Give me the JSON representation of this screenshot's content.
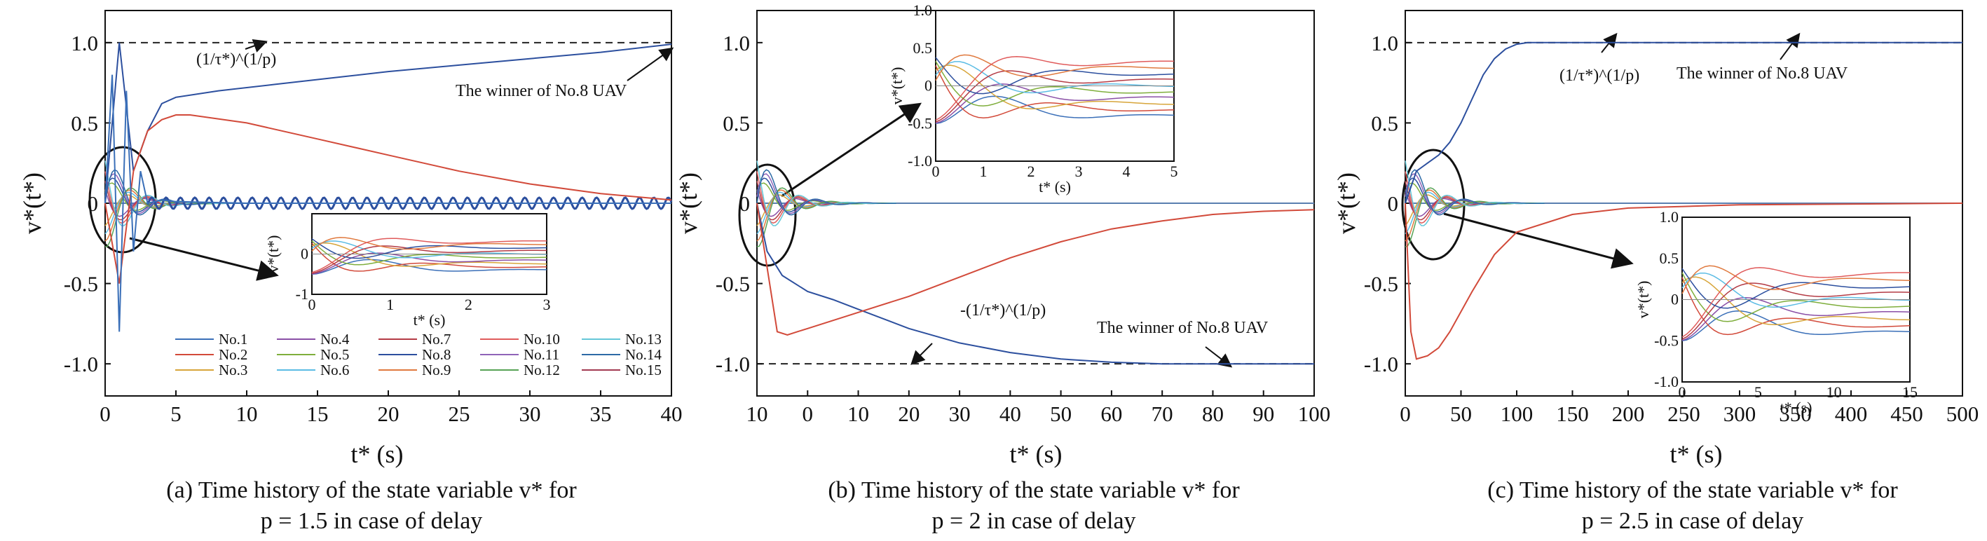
{
  "figure": {
    "legend": [
      "No.1",
      "No.2",
      "No.3",
      "No.4",
      "No.5",
      "No.6",
      "No.7",
      "No.8",
      "No.9",
      "No.10",
      "No.11",
      "No.12",
      "No.13",
      "No.14",
      "No.15"
    ],
    "series_colors": [
      "#3a6fb8",
      "#d24a3a",
      "#d7a53a",
      "#8a4fa6",
      "#7fae3c",
      "#5bbce4",
      "#b43b45",
      "#2c4f9e",
      "#e07a3f",
      "#e05b5b",
      "#8f63b8",
      "#57a356",
      "#65c7d8",
      "#2d6aa6",
      "#a23a52"
    ]
  },
  "chart_data": [
    {
      "id": "a",
      "type": "line",
      "caption_line1": "(a) Time history of the state variable v* for",
      "caption_line2": "p = 1.5 in case of delay",
      "xlabel": "t* (s)",
      "ylabel": "v*(t*)",
      "xlim": [
        0,
        40
      ],
      "ylim": [
        -1.2,
        1.2
      ],
      "xticks": [
        "0",
        "5",
        "10",
        "15",
        "20",
        "25",
        "30",
        "35",
        "40"
      ],
      "yticks": [
        "1.0",
        "0.5",
        "0",
        "-0.5",
        "-1.0"
      ],
      "reference_line": 1.0,
      "annotations": [
        "(1/τ*)^(1/p)",
        "The winner of No.8 UAV"
      ],
      "series": [
        {
          "name": "No.8",
          "x": [
            0,
            1,
            2,
            3,
            4,
            5,
            8,
            12,
            16,
            20,
            25,
            30,
            35,
            40
          ],
          "values": [
            0,
            1.0,
            0.2,
            0.45,
            0.62,
            0.66,
            0.7,
            0.74,
            0.78,
            0.82,
            0.86,
            0.9,
            0.94,
            0.99
          ]
        },
        {
          "name": "No.2",
          "x": [
            0,
            1,
            2,
            3,
            4,
            5,
            6,
            10,
            15,
            20,
            25,
            30,
            35,
            40
          ],
          "values": [
            0,
            -0.5,
            0.2,
            0.45,
            0.52,
            0.55,
            0.55,
            0.5,
            0.4,
            0.3,
            0.2,
            0.12,
            0.06,
            0.02
          ]
        },
        {
          "name": "No.1",
          "x": [
            0,
            0.5,
            1,
            1.5,
            2,
            2.5,
            3,
            4,
            5,
            10,
            20,
            30,
            40
          ],
          "values": [
            0,
            0.8,
            -0.8,
            0.7,
            -0.3,
            0.2,
            0,
            0.02,
            0.01,
            0,
            0,
            0,
            0
          ]
        }
      ],
      "inset": {
        "xlim": [
          0,
          3
        ],
        "ylim": [
          -1,
          1
        ],
        "xticks": [
          "0",
          "1",
          "2",
          "3"
        ],
        "yticks": [
          "0",
          "-1"
        ],
        "xlabel": "t* (s)",
        "ylabel": "v*(t*)"
      }
    },
    {
      "id": "b",
      "type": "line",
      "caption_line1": "(b) Time history of the state variable v* for",
      "caption_line2": "p = 2 in case of delay",
      "xlabel": "t* (s)",
      "ylabel": "v*(t*)",
      "xlim": [
        -10,
        100
      ],
      "ylim": [
        -1.2,
        1.2
      ],
      "xticks": [
        "10",
        "0",
        "10",
        "20",
        "30",
        "40",
        "50",
        "60",
        "70",
        "80",
        "90",
        "100"
      ],
      "yticks": [
        "1.0",
        "0.5",
        "0",
        "-0.5",
        "-1.0"
      ],
      "reference_line": -1.0,
      "annotations": [
        "-(1/τ*)^(1/p)",
        "The winner of No.8 UAV"
      ],
      "series": [
        {
          "name": "No.8",
          "x": [
            -10,
            -8,
            -5,
            0,
            5,
            10,
            20,
            30,
            40,
            50,
            60,
            70,
            80,
            90,
            100
          ],
          "values": [
            0,
            -0.3,
            -0.45,
            -0.55,
            -0.6,
            -0.66,
            -0.78,
            -0.87,
            -0.93,
            -0.97,
            -0.99,
            -1.0,
            -1.0,
            -1.0,
            -1.0
          ]
        },
        {
          "name": "No.2",
          "x": [
            -10,
            -8,
            -6,
            -4,
            -2,
            0,
            5,
            10,
            20,
            30,
            40,
            50,
            60,
            70,
            80,
            90,
            100
          ],
          "values": [
            0,
            -0.4,
            -0.8,
            -0.82,
            -0.8,
            -0.78,
            -0.73,
            -0.68,
            -0.58,
            -0.46,
            -0.34,
            -0.24,
            -0.16,
            -0.11,
            -0.07,
            -0.05,
            -0.04
          ]
        }
      ],
      "inset": {
        "xlim": [
          0,
          5
        ],
        "ylim": [
          -1,
          1
        ],
        "xticks": [
          "0",
          "1",
          "2",
          "3",
          "4",
          "5"
        ],
        "yticks": [
          "1.0",
          "0.5",
          "0",
          "-0.5",
          "-1.0"
        ],
        "xlabel": "t* (s)",
        "ylabel": "v*(t*)"
      }
    },
    {
      "id": "c",
      "type": "line",
      "caption_line1": "(c) Time history of the state variable v* for",
      "caption_line2": "p = 2.5 in case of delay",
      "xlabel": "t* (s)",
      "ylabel": "v*(t*)",
      "xlim": [
        0,
        500
      ],
      "ylim": [
        -1.2,
        1.2
      ],
      "xticks": [
        "0",
        "50",
        "100",
        "150",
        "200",
        "250",
        "300",
        "350",
        "400",
        "450",
        "500"
      ],
      "yticks": [
        "1.0",
        "0.5",
        "0",
        "-0.5",
        "-1.0"
      ],
      "reference_line": 1.0,
      "annotations": [
        "(1/τ*)^(1/p)",
        "The winner of No.8 UAV"
      ],
      "series": [
        {
          "name": "No.8",
          "x": [
            0,
            10,
            20,
            30,
            40,
            50,
            60,
            70,
            80,
            90,
            100,
            110,
            120,
            500
          ],
          "values": [
            0,
            0.2,
            0.25,
            0.3,
            0.38,
            0.5,
            0.65,
            0.8,
            0.9,
            0.96,
            0.99,
            1.0,
            1.0,
            1.0
          ]
        },
        {
          "name": "No.2",
          "x": [
            0,
            5,
            10,
            15,
            20,
            30,
            40,
            60,
            80,
            100,
            150,
            200,
            250,
            300,
            500
          ],
          "values": [
            0,
            -0.8,
            -0.97,
            -0.96,
            -0.95,
            -0.9,
            -0.8,
            -0.55,
            -0.32,
            -0.18,
            -0.07,
            -0.03,
            -0.02,
            -0.01,
            0
          ]
        }
      ],
      "inset": {
        "xlim": [
          0,
          15
        ],
        "ylim": [
          -1,
          1
        ],
        "xticks": [
          "0",
          "5",
          "10",
          "15"
        ],
        "yticks": [
          "1.0",
          "0.5",
          "0",
          "-0.5",
          "-1.0"
        ],
        "xlabel": "t* (s)",
        "ylabel": "v*(t*)"
      }
    }
  ]
}
